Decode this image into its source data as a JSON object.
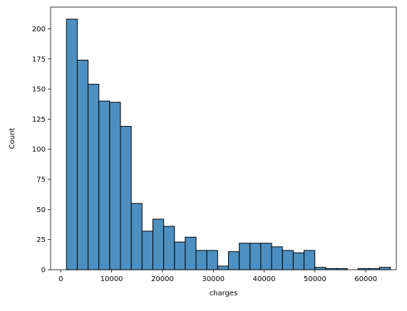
{
  "chart_data": {
    "type": "histogram",
    "title": "",
    "xlabel": "charges",
    "ylabel": "Count",
    "bar_color": "#4d8fc1",
    "edge_color": "#000000",
    "bins_start": 1122,
    "bin_width": 2124,
    "counts": [
      208,
      174,
      154,
      140,
      139,
      119,
      55,
      32,
      42,
      36,
      23,
      27,
      16,
      16,
      3,
      15,
      22,
      22,
      22,
      19,
      16,
      14,
      16,
      2,
      1,
      1,
      0,
      1,
      1,
      2
    ],
    "xlim": [
      -2000,
      66000
    ],
    "ylim": [
      0,
      218
    ],
    "xticks": [
      0,
      10000,
      20000,
      30000,
      40000,
      50000,
      60000
    ],
    "yticks": [
      0,
      25,
      50,
      75,
      100,
      125,
      150,
      175,
      200
    ],
    "grid": false,
    "legend": false
  }
}
